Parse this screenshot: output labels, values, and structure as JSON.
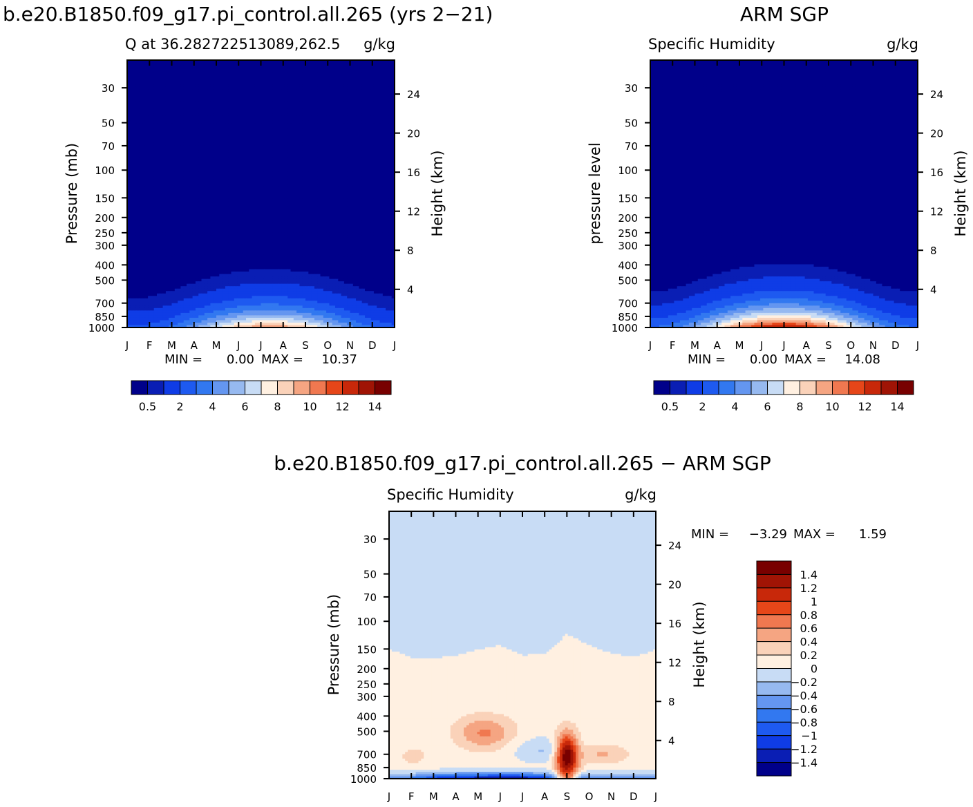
{
  "chart_data": [
    {
      "type": "heatmap",
      "header_left": "b.e20.B1850.f09_g17.pi_control.all.265 (yrs 2−21)",
      "subtitle_left": "Q at 36.282722513089,262.5",
      "units": "g/kg",
      "ylabel": "Pressure (mb)",
      "ylabel_right": "Height (km)",
      "x": [
        "J",
        "F",
        "M",
        "A",
        "M",
        "J",
        "J",
        "A",
        "S",
        "O",
        "N",
        "D",
        "J"
      ],
      "y_ticks": [
        "30",
        "50",
        "70",
        "100",
        "150",
        "200",
        "250",
        "300",
        "400",
        "500",
        "700",
        "850",
        "1000"
      ],
      "y_right_ticks": [
        "24",
        "20",
        "16",
        "12",
        "8",
        "4"
      ],
      "stats": {
        "min_label": "MIN =",
        "min": "0.00",
        "max_label": "MAX =",
        "max": "10.37"
      },
      "levels": [
        0.5,
        1,
        2,
        3,
        4,
        5,
        6,
        7,
        8,
        9,
        10,
        11,
        12,
        13,
        14
      ],
      "colorbar_labels": [
        "0.5",
        "2",
        "4",
        "6",
        "8",
        "10",
        "12",
        "14"
      ],
      "colors": [
        "#00008a",
        "#0a1eb4",
        "#0f3ce6",
        "#1e5af0",
        "#3278f0",
        "#6496f0",
        "#96b9f0",
        "#c8dcf5",
        "#fff0e1",
        "#fad2b9",
        "#f5a582",
        "#f07850",
        "#e64619",
        "#c8280a",
        "#a01405",
        "#780000"
      ],
      "max_level_index": 10,
      "peak_month": 6.4
    },
    {
      "type": "heatmap",
      "header_right": "ARM SGP",
      "subtitle": "Specific Humidity",
      "units": "g/kg",
      "ylabel": "pressure level",
      "ylabel_right": "Height (km)",
      "x": [
        "J",
        "F",
        "M",
        "A",
        "M",
        "J",
        "J",
        "A",
        "S",
        "O",
        "N",
        "D",
        "J"
      ],
      "y_ticks": [
        "30",
        "50",
        "70",
        "100",
        "150",
        "200",
        "250",
        "300",
        "400",
        "500",
        "700",
        "850",
        "1000"
      ],
      "y_right_ticks": [
        "24",
        "20",
        "16",
        "12",
        "8",
        "4"
      ],
      "stats": {
        "min_label": "MIN =",
        "min": "0.00",
        "max_label": "MAX =",
        "max": "14.08"
      },
      "levels": [
        0.5,
        1,
        2,
        3,
        4,
        5,
        6,
        7,
        8,
        9,
        10,
        11,
        12,
        13,
        14
      ],
      "colorbar_labels": [
        "0.5",
        "2",
        "4",
        "6",
        "8",
        "10",
        "12",
        "14"
      ],
      "max_level_index": 14,
      "peak_month": 6.0
    },
    {
      "type": "heatmap",
      "title": "b.e20.B1850.f09_g17.pi_control.all.265 − ARM SGP",
      "subtitle": "Specific Humidity",
      "units": "g/kg",
      "ylabel": "Pressure (mb)",
      "ylabel_right": "Height (km)",
      "x": [
        "J",
        "F",
        "M",
        "A",
        "M",
        "J",
        "J",
        "A",
        "S",
        "O",
        "N",
        "D",
        "J"
      ],
      "y_ticks": [
        "30",
        "50",
        "70",
        "100",
        "150",
        "200",
        "250",
        "300",
        "400",
        "500",
        "700",
        "850",
        "1000"
      ],
      "y_right_ticks": [
        "24",
        "20",
        "16",
        "12",
        "8",
        "4"
      ],
      "stats": {
        "min_label": "MIN =",
        "min": "−3.29",
        "max_label": "MAX =",
        "max": "1.59"
      },
      "levels": [
        -1.4,
        -1.2,
        -1,
        -0.8,
        -0.6,
        -0.4,
        -0.2,
        0,
        0.2,
        0.4,
        0.6,
        0.8,
        1,
        1.2,
        1.4
      ],
      "colorbar_labels": [
        "1.4",
        "1.2",
        "1",
        "0.8",
        "0.6",
        "0.4",
        "0.2",
        "0",
        "−0.2",
        "−0.4",
        "−0.6",
        "−0.8",
        "−1",
        "−1.2",
        "−1.4"
      ],
      "colors": [
        "#00008a",
        "#0a1eb4",
        "#0f3ce6",
        "#1e5af0",
        "#3278f0",
        "#6496f0",
        "#96b9f0",
        "#c8dcf5",
        "#fff0e1",
        "#fad2b9",
        "#f5a582",
        "#f07850",
        "#e64619",
        "#c8280a",
        "#a01405",
        "#780000"
      ],
      "boundary_pressure_mb": [
        150,
        170,
        172,
        165,
        152,
        142,
        165,
        160,
        120,
        142,
        160,
        168,
        152
      ]
    }
  ]
}
